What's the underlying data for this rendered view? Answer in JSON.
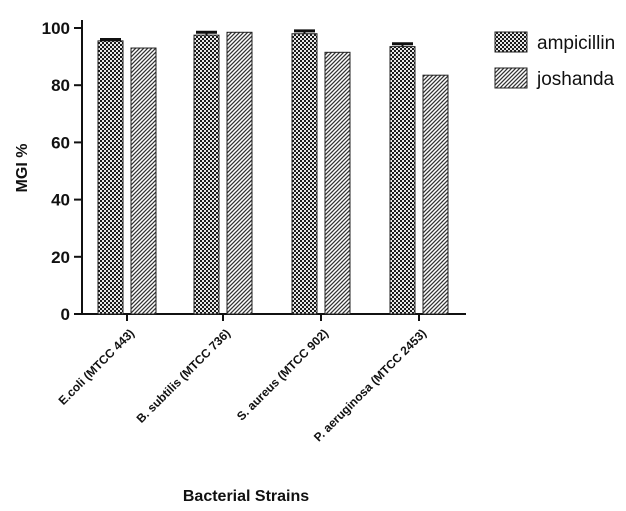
{
  "chart_data": {
    "type": "bar",
    "title": "",
    "xlabel": "Bacterial Strains",
    "ylabel": "MGI %",
    "ylim": [
      0,
      100
    ],
    "yticks": [
      0,
      20,
      40,
      60,
      80,
      100
    ],
    "grid": false,
    "legend_position": "top-right",
    "categories": [
      "E.coli (MTCC 443)",
      "B. subtilis (MTCC 736)",
      "S. aureus (MTCC 902)",
      "P. aeruginosa (MTCC 2453)"
    ],
    "series": [
      {
        "name": "ampicillin",
        "pattern": "checkered",
        "values": [
          95.5,
          97.5,
          98,
          93.5
        ],
        "errors": [
          0.5,
          1,
          1,
          1
        ]
      },
      {
        "name": "joshanda",
        "pattern": "diagonal",
        "values": [
          93,
          98.5,
          91.5,
          83.5
        ],
        "errors": [
          0,
          0,
          0,
          0
        ]
      }
    ]
  }
}
